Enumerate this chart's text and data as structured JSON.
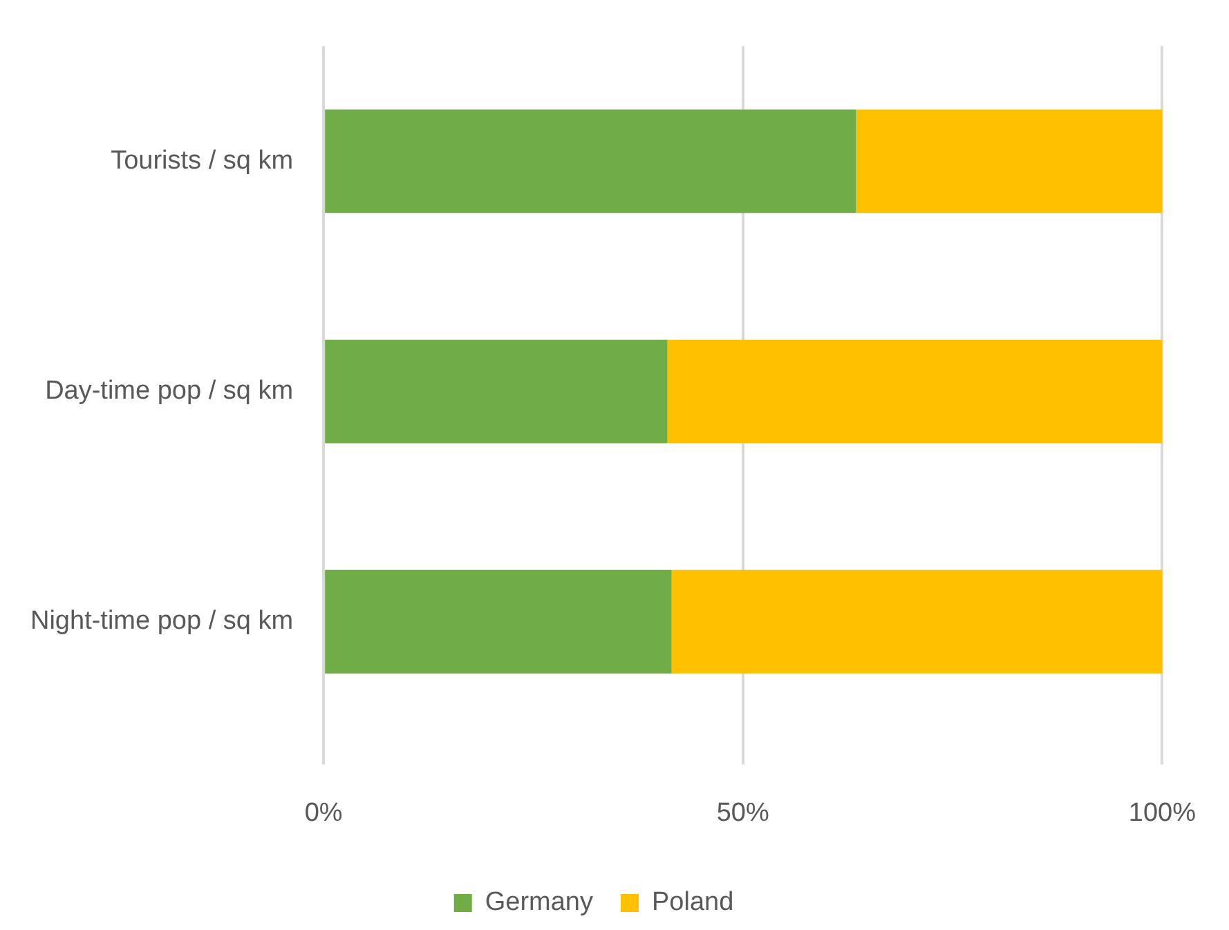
{
  "chart_data": {
    "type": "bar",
    "orientation": "horizontal",
    "stacked": true,
    "categories": [
      "Tourists / sq km",
      "Day-time pop / sq km",
      "Night-time pop / sq km"
    ],
    "series": [
      {
        "name": "Germany",
        "color": "#70ad47",
        "values": [
          63.5,
          41,
          41.5
        ]
      },
      {
        "name": "Poland",
        "color": "#ffc000",
        "values": [
          36.5,
          59,
          58.5
        ]
      }
    ],
    "xlim": [
      0,
      100
    ],
    "xticks": [
      {
        "value": 0,
        "label": "0%"
      },
      {
        "value": 50,
        "label": "50%"
      },
      {
        "value": 100,
        "label": "100%"
      }
    ],
    "grid": "x",
    "legend": "bottom"
  }
}
